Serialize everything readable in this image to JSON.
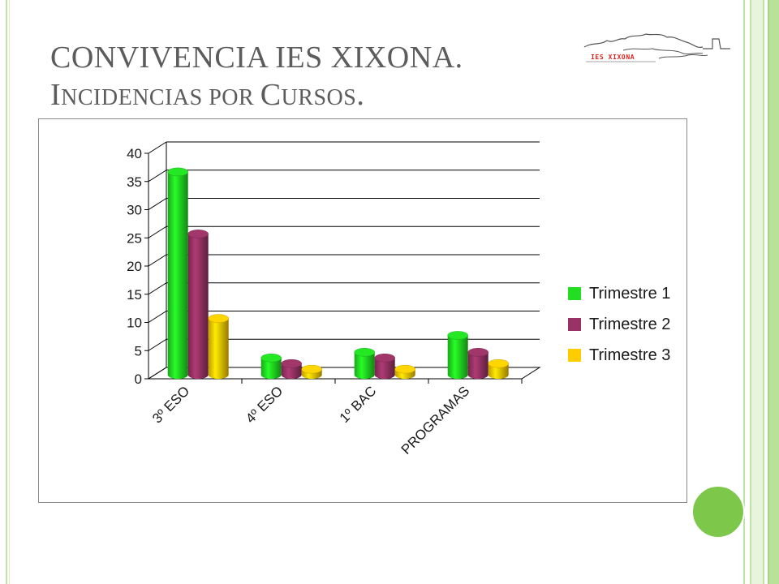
{
  "slide": {
    "title_line1": "CONVIVENCIA IES XIXONA.",
    "title_line2": "Incidencias por Cursos.",
    "logo_text": "IES XIXONA"
  },
  "colors": {
    "frame_green": "#bfe3a4",
    "accent_green": "#7dc84b",
    "title_gray": "#5c5c5c"
  },
  "chart_data": {
    "type": "bar",
    "title": "",
    "xlabel": "",
    "ylabel": "",
    "ylim": [
      0,
      40
    ],
    "yticks": [
      0,
      5,
      10,
      15,
      20,
      25,
      30,
      35,
      40
    ],
    "categories": [
      "3º ESO",
      "4º ESO",
      "1º BAC",
      "PROGRAMAS"
    ],
    "series": [
      {
        "name": "Trimestre 1",
        "color": "#22dd22",
        "values": [
          36,
          3,
          4,
          7
        ]
      },
      {
        "name": "Trimestre 2",
        "color": "#993366",
        "values": [
          25,
          2,
          3,
          4
        ]
      },
      {
        "name": "Trimestre 3",
        "color": "#ffcc00",
        "values": [
          10,
          1,
          1,
          2
        ]
      }
    ],
    "grid": true,
    "legend_position": "right",
    "style": "3d-cylinder"
  }
}
